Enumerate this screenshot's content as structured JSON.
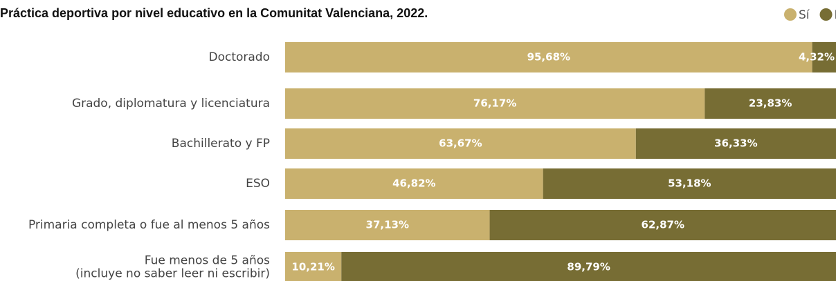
{
  "chart_data": {
    "type": "stacked_bar_horizontal",
    "title": "Práctica deportiva por nivel educativo en la Comunitat Valenciana, 2022.",
    "categories": [
      "Doctorado",
      "Grado, diplomatura y licenciatura",
      "Bachillerato y FP",
      "ESO",
      "Primaria completa o fue al menos 5 años",
      "Fue menos de 5 años\n(incluye no saber leer ni escribir)"
    ],
    "xlim": [
      0,
      100
    ],
    "legend": "top-right",
    "series": [
      {
        "name": "Sí",
        "color": "#c9b16e",
        "values": [
          95.68,
          76.17,
          63.67,
          46.82,
          37.13,
          10.21
        ],
        "value_labels": [
          "95,68%",
          "76,17%",
          "63,67%",
          "46,82%",
          "37,13%",
          "10,21%"
        ]
      },
      {
        "name": "No",
        "color": "#776d34",
        "values": [
          4.32,
          23.83,
          36.33,
          53.18,
          62.87,
          89.79
        ],
        "value_labels": [
          "4,32%",
          "23,83%",
          "36,33%",
          "53,18%",
          "62,87%",
          "89,79%"
        ]
      }
    ]
  }
}
